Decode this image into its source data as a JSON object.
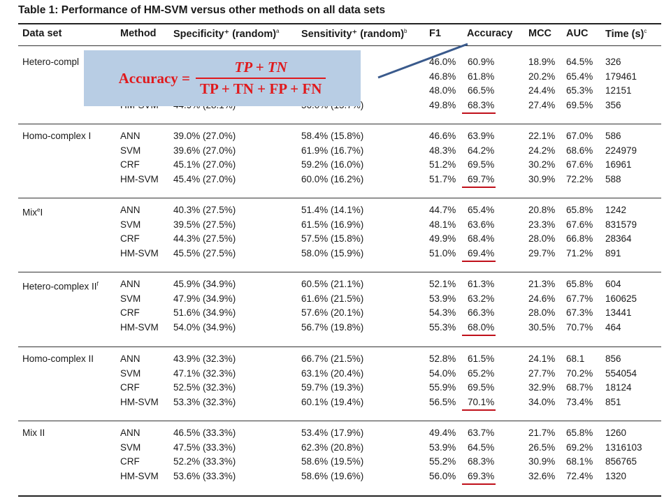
{
  "table": {
    "title": "Table 1: Performance of HM-SVM versus other methods on all data sets",
    "headers": {
      "dataset": "Data set",
      "method": "Method",
      "specificity": "Specificity⁺ (random)",
      "specificity_sup": "a",
      "sensitivity": "Sensitivity⁺ (random)",
      "sensitivity_sup": "b",
      "f1": "F1",
      "accuracy": "Accuracy",
      "mcc": "MCC",
      "auc": "AUC",
      "time": "Time (s)",
      "time_sup": "c"
    },
    "groups": [
      {
        "name": "Hetero-compl",
        "name_sup": "",
        "rows": [
          {
            "method": "",
            "spec": "",
            "sens": "",
            "f1": "46.0%",
            "acc": "60.9%",
            "mcc": "18.9%",
            "auc": "64.5%",
            "time": "326"
          },
          {
            "method": "",
            "spec": "",
            "sens": "",
            "f1": "46.8%",
            "acc": "61.8%",
            "mcc": "20.2%",
            "auc": "65.4%",
            "time": "179461"
          },
          {
            "method": "",
            "spec": "",
            "sens": "",
            "f1": "48.0%",
            "acc": "66.5%",
            "mcc": "24.4%",
            "auc": "65.3%",
            "time": "12151"
          },
          {
            "method": "HM-SVM",
            "spec": "44.9% (28.1%)",
            "sens": "56.0% (15.7%)",
            "f1": "49.8%",
            "acc": "68.3%",
            "mcc": "27.4%",
            "auc": "69.5%",
            "time": "356"
          }
        ]
      },
      {
        "name": "Homo-complex I",
        "name_sup": "",
        "rows": [
          {
            "method": "ANN",
            "spec": "39.0% (27.0%)",
            "sens": "58.4% (15.8%)",
            "f1": "46.6%",
            "acc": "63.9%",
            "mcc": "22.1%",
            "auc": "67.0%",
            "time": "586"
          },
          {
            "method": "SVM",
            "spec": "39.6% (27.0%)",
            "sens": "61.9% (16.7%)",
            "f1": "48.3%",
            "acc": "64.2%",
            "mcc": "24.2%",
            "auc": "68.6%",
            "time": "224979"
          },
          {
            "method": "CRF",
            "spec": "45.1% (27.0%)",
            "sens": "59.2% (16.0%)",
            "f1": "51.2%",
            "acc": "69.5%",
            "mcc": "30.2%",
            "auc": "67.6%",
            "time": "16961"
          },
          {
            "method": "HM-SVM",
            "spec": "45.4% (27.0%)",
            "sens": "60.0% (16.2%)",
            "f1": "51.7%",
            "acc": "69.7%",
            "mcc": "30.9%",
            "auc": "72.2%",
            "time": "588"
          }
        ]
      },
      {
        "name": "Mix",
        "name_sup": "e",
        "name_tail": "I",
        "rows": [
          {
            "method": "ANN",
            "spec": "40.3% (27.5%)",
            "sens": "51.4% (14.1%)",
            "f1": "44.7%",
            "acc": "65.4%",
            "mcc": "20.8%",
            "auc": "65.8%",
            "time": "1242"
          },
          {
            "method": "SVM",
            "spec": "39.5% (27.5%)",
            "sens": "61.5% (16.9%)",
            "f1": "48.1%",
            "acc": "63.6%",
            "mcc": "23.3%",
            "auc": "67.6%",
            "time": "831579"
          },
          {
            "method": "CRF",
            "spec": "44.3% (27.5%)",
            "sens": "57.5% (15.8%)",
            "f1": "49.9%",
            "acc": "68.4%",
            "mcc": "28.0%",
            "auc": "66.8%",
            "time": "28364"
          },
          {
            "method": "HM-SVM",
            "spec": "45.5% (27.5%)",
            "sens": "58.0% (15.9%)",
            "f1": "51.0%",
            "acc": "69.4%",
            "mcc": "29.7%",
            "auc": "71.2%",
            "time": "891"
          }
        ]
      },
      {
        "name": "Hetero-complex II",
        "name_sup": "f",
        "name_tail": "",
        "rows": [
          {
            "method": "ANN",
            "spec": "45.9% (34.9%)",
            "sens": "60.5% (21.1%)",
            "f1": "52.1%",
            "acc": "61.3%",
            "mcc": "21.3%",
            "auc": "65.8%",
            "time": "604"
          },
          {
            "method": "SVM",
            "spec": "47.9% (34.9%)",
            "sens": "61.6% (21.5%)",
            "f1": "53.9%",
            "acc": "63.2%",
            "mcc": "24.6%",
            "auc": "67.7%",
            "time": "160625"
          },
          {
            "method": "CRF",
            "spec": "51.6% (34.9%)",
            "sens": "57.6% (20.1%)",
            "f1": "54.3%",
            "acc": "66.3%",
            "mcc": "28.0%",
            "auc": "67.3%",
            "time": "13441"
          },
          {
            "method": "HM-SVM",
            "spec": "54.0% (34.9%)",
            "sens": "56.7% (19.8%)",
            "f1": "55.3%",
            "acc": "68.0%",
            "mcc": "30.5%",
            "auc": "70.7%",
            "time": "464"
          }
        ]
      },
      {
        "name": "Homo-complex II",
        "name_sup": "",
        "rows": [
          {
            "method": "ANN",
            "spec": "43.9% (32.3%)",
            "sens": "66.7% (21.5%)",
            "f1": "52.8%",
            "acc": "61.5%",
            "mcc": "24.1%",
            "auc": "68.1",
            "time": "856"
          },
          {
            "method": "SVM",
            "spec": "47.1% (32.3%)",
            "sens": "63.1% (20.4%)",
            "f1": "54.0%",
            "acc": "65.2%",
            "mcc": "27.7%",
            "auc": "70.2%",
            "time": "554054"
          },
          {
            "method": "CRF",
            "spec": "52.5% (32.3%)",
            "sens": "59.7% (19.3%)",
            "f1": "55.9%",
            "acc": "69.5%",
            "mcc": "32.9%",
            "auc": "68.7%",
            "time": "18124"
          },
          {
            "method": "HM-SVM",
            "spec": "53.3% (32.3%)",
            "sens": "60.1% (19.4%)",
            "f1": "56.5%",
            "acc": "70.1%",
            "mcc": "34.0%",
            "auc": "73.4%",
            "time": "851"
          }
        ]
      },
      {
        "name": "Mix II",
        "name_sup": "",
        "rows": [
          {
            "method": "ANN",
            "spec": "46.5% (33.3%)",
            "sens": "53.4% (17.9%)",
            "f1": "49.4%",
            "acc": "63.7%",
            "mcc": "21.7%",
            "auc": "65.8%",
            "time": "1260"
          },
          {
            "method": "SVM",
            "spec": "47.5% (33.3%)",
            "sens": "62.3% (20.8%)",
            "f1": "53.9%",
            "acc": "64.5%",
            "mcc": "26.5%",
            "auc": "69.2%",
            "time": "1316103"
          },
          {
            "method": "CRF",
            "spec": "52.2% (33.3%)",
            "sens": "58.6% (19.5%)",
            "f1": "55.2%",
            "acc": "68.3%",
            "mcc": "30.9%",
            "auc": "68.1%",
            "time": "856765"
          },
          {
            "method": "HM-SVM",
            "spec": "53.6% (33.3%)",
            "sens": "58.6% (19.6%)",
            "f1": "56.0%",
            "acc": "69.3%",
            "mcc": "32.6%",
            "auc": "72.4%",
            "time": "1320"
          }
        ]
      }
    ]
  },
  "formula": {
    "lhs": "Accuracy =",
    "numerator": "TP + TN",
    "denominator": "TP + TN + FP + FN"
  },
  "colors": {
    "highlight_underline": "#c0101a",
    "formula_text": "#e0191c",
    "formula_box": "#b8cde4",
    "pointer_line": "#3a5a8c"
  }
}
